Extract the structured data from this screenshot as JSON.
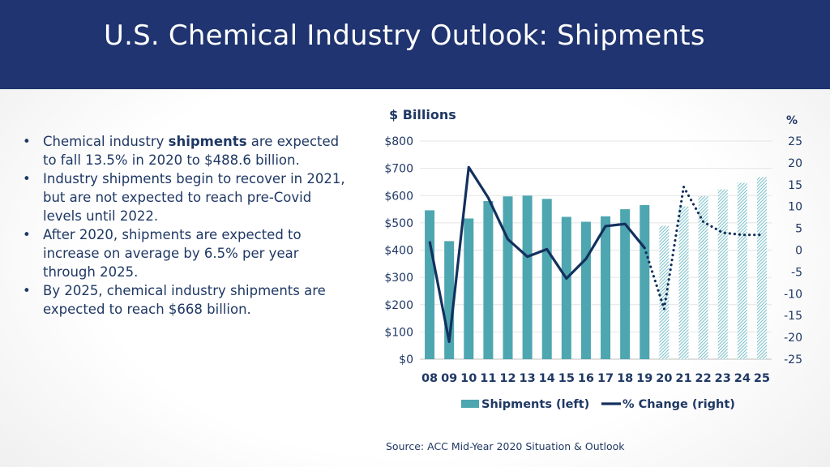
{
  "slide": {
    "title": "U.S. Chemical Industry Outlook: Shipments",
    "bullets": [
      {
        "pre": "Chemical industry ",
        "bold": "shipments",
        "post": " are expected to fall 13.5% in 2020 to $488.6 billion."
      },
      {
        "pre": "Industry shipments begin to recover in 2021, but are not expected to reach pre-Covid levels until 2022.",
        "bold": "",
        "post": ""
      },
      {
        "pre": "After 2020, shipments are expected to increase on average by 6.5% per year through 2025.",
        "bold": "",
        "post": ""
      },
      {
        "pre": "By 2025, chemical industry shipments are expected to reach $668 billion.",
        "bold": "",
        "post": ""
      }
    ],
    "source": "Source: ACC Mid-Year 2020 Situation & Outlook"
  },
  "colors": {
    "header_bg": "#1f3470",
    "bar_actual": "#4da6b0",
    "bar_forecast": "#b9dde2",
    "line": "#13305e",
    "text": "#1f3864"
  },
  "chart_data": {
    "type": "bar+line",
    "categories": [
      "08",
      "09",
      "10",
      "11",
      "12",
      "13",
      "14",
      "15",
      "16",
      "17",
      "18",
      "19",
      "20",
      "21",
      "22",
      "23",
      "24",
      "25"
    ],
    "forecast_start_index": 12,
    "series": [
      {
        "name": "Shipments (left)",
        "type": "bar",
        "axis": "left",
        "values": [
          546,
          433,
          516,
          580,
          597,
          600,
          588,
          522,
          504,
          524,
          550,
          565,
          489,
          560,
          598,
          623,
          647,
          668
        ]
      },
      {
        "name": "% Change (right)",
        "type": "line",
        "axis": "right",
        "values": [
          2,
          -21,
          19,
          12,
          2.5,
          -1.5,
          0.2,
          -6.5,
          -2,
          5.5,
          6,
          0.5,
          -13.5,
          14.5,
          6.5,
          4,
          3.5,
          3.5
        ]
      }
    ],
    "left_axis": {
      "label": "$ Billions",
      "ylim": [
        0,
        800
      ],
      "ticks": [
        "$0",
        "$100",
        "$200",
        "$300",
        "$400",
        "$500",
        "$600",
        "$700",
        "$800"
      ]
    },
    "right_axis": {
      "label": "%",
      "ylim": [
        -25,
        25
      ],
      "ticks": [
        "-25",
        "-20",
        "-15",
        "-10",
        "-5",
        "0",
        "5",
        "10",
        "15",
        "20",
        "25"
      ]
    },
    "legend": {
      "position": "bottom",
      "items": [
        "Shipments (left)",
        "% Change (right)"
      ]
    }
  }
}
